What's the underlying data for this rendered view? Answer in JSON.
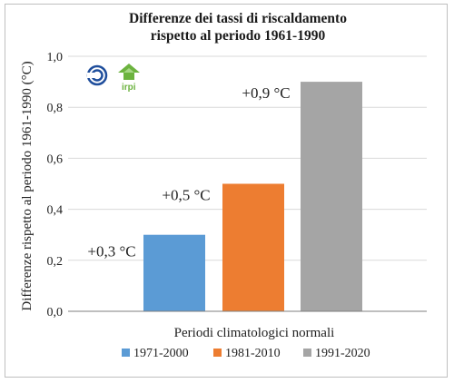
{
  "chart_data": {
    "type": "bar",
    "title_lines": [
      "Differenze dei tassi di riscaldamento",
      "rispetto al periodo 1961-1990"
    ],
    "xlabel": "Periodi climatologici normali",
    "ylabel": "Differenze rispetto al periodo 1961-1990 (°C)",
    "ylim": [
      0,
      1
    ],
    "yticks": [
      "0,0",
      "0,2",
      "0,4",
      "0,6",
      "0,8",
      "1,0"
    ],
    "grid": true,
    "legend_position": "bottom",
    "categories": [
      "1971-2000",
      "1981-2010",
      "1991-2020"
    ],
    "values": [
      0.3,
      0.5,
      0.9
    ],
    "data_labels": [
      "+0,3 °C",
      "+0,5 °C",
      "+0,9 °C"
    ],
    "colors": [
      "#5b9bd5",
      "#ed7d31",
      "#a5a5a5"
    ]
  },
  "logos": {
    "left": "cnr-logo",
    "right_text": "irpi"
  }
}
